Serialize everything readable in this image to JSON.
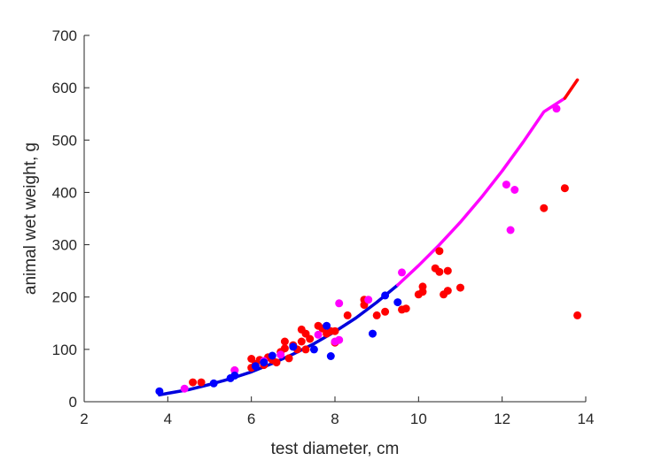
{
  "chart_data": {
    "type": "scatter",
    "title": "",
    "xlabel": "test diameter, cm",
    "ylabel": "animal wet weight, g",
    "xlim": [
      2,
      14
    ],
    "ylim": [
      0,
      700
    ],
    "xticks": [
      2,
      4,
      6,
      8,
      10,
      12,
      14
    ],
    "yticks": [
      0,
      100,
      200,
      300,
      400,
      500,
      600,
      700
    ],
    "grid": false,
    "legend": "none",
    "series": [
      {
        "color": "#0000ff",
        "points": [
          [
            3.8,
            20
          ],
          [
            5.1,
            35
          ],
          [
            5.5,
            45
          ],
          [
            5.6,
            50
          ],
          [
            6.1,
            68
          ],
          [
            6.3,
            75
          ],
          [
            6.5,
            88
          ],
          [
            7.0,
            105
          ],
          [
            7.5,
            100
          ],
          [
            7.8,
            145
          ],
          [
            7.9,
            87
          ],
          [
            8.9,
            130
          ],
          [
            9.2,
            203
          ],
          [
            9.5,
            190
          ]
        ]
      },
      {
        "color": "#ff0000",
        "points": [
          [
            4.6,
            37
          ],
          [
            4.8,
            37
          ],
          [
            5.6,
            60
          ],
          [
            6.0,
            65
          ],
          [
            6.0,
            82
          ],
          [
            6.1,
            72
          ],
          [
            6.2,
            80
          ],
          [
            6.3,
            70
          ],
          [
            6.4,
            85
          ],
          [
            6.5,
            80
          ],
          [
            6.6,
            75
          ],
          [
            6.7,
            95
          ],
          [
            6.8,
            115
          ],
          [
            6.8,
            102
          ],
          [
            6.9,
            83
          ],
          [
            7.0,
            108
          ],
          [
            7.1,
            100
          ],
          [
            7.2,
            115
          ],
          [
            7.2,
            138
          ],
          [
            7.3,
            130
          ],
          [
            7.3,
            100
          ],
          [
            7.4,
            120
          ],
          [
            7.6,
            145
          ],
          [
            7.7,
            140
          ],
          [
            7.8,
            130
          ],
          [
            7.9,
            135
          ],
          [
            8.0,
            135
          ],
          [
            8.0,
            113
          ],
          [
            8.3,
            165
          ],
          [
            8.7,
            195
          ],
          [
            8.7,
            185
          ],
          [
            9.0,
            165
          ],
          [
            9.2,
            172
          ],
          [
            9.6,
            176
          ],
          [
            9.7,
            178
          ],
          [
            10.0,
            205
          ],
          [
            10.1,
            210
          ],
          [
            10.1,
            220
          ],
          [
            10.4,
            255
          ],
          [
            10.5,
            248
          ],
          [
            10.5,
            288
          ],
          [
            10.6,
            205
          ],
          [
            10.7,
            250
          ],
          [
            10.7,
            212
          ],
          [
            11.0,
            218
          ],
          [
            13.0,
            370
          ],
          [
            13.5,
            408
          ],
          [
            13.8,
            165
          ]
        ]
      },
      {
        "color": "#ff00ff",
        "points": [
          [
            4.4,
            25
          ],
          [
            5.6,
            60
          ],
          [
            6.3,
            78
          ],
          [
            6.7,
            90
          ],
          [
            7.6,
            128
          ],
          [
            8.0,
            115
          ],
          [
            8.1,
            118
          ],
          [
            8.1,
            188
          ],
          [
            8.8,
            195
          ],
          [
            9.6,
            247
          ],
          [
            12.1,
            415
          ],
          [
            12.2,
            328
          ],
          [
            12.3,
            405
          ],
          [
            13.3,
            560
          ]
        ]
      }
    ],
    "curves": [
      {
        "color": "#0000dd",
        "x": [
          3.8,
          4.0,
          4.5,
          5.0,
          5.5,
          6.0,
          6.5,
          7.0,
          7.5,
          8.0,
          8.5,
          9.0,
          9.5
        ],
        "y": [
          13,
          16,
          23,
          33,
          44,
          57,
          73,
          91,
          111,
          134,
          160,
          190,
          223
        ]
      },
      {
        "color": "#ff00ff",
        "x": [
          9.5,
          10.0,
          10.5,
          11.0,
          11.5,
          12.0,
          12.5,
          13.0,
          13.5
        ],
        "y": [
          223,
          260,
          300,
          343,
          390,
          441,
          496,
          554,
          580
        ]
      },
      {
        "color": "#ff0000",
        "x": [
          13.5,
          13.8
        ],
        "y": [
          580,
          615
        ]
      }
    ]
  }
}
